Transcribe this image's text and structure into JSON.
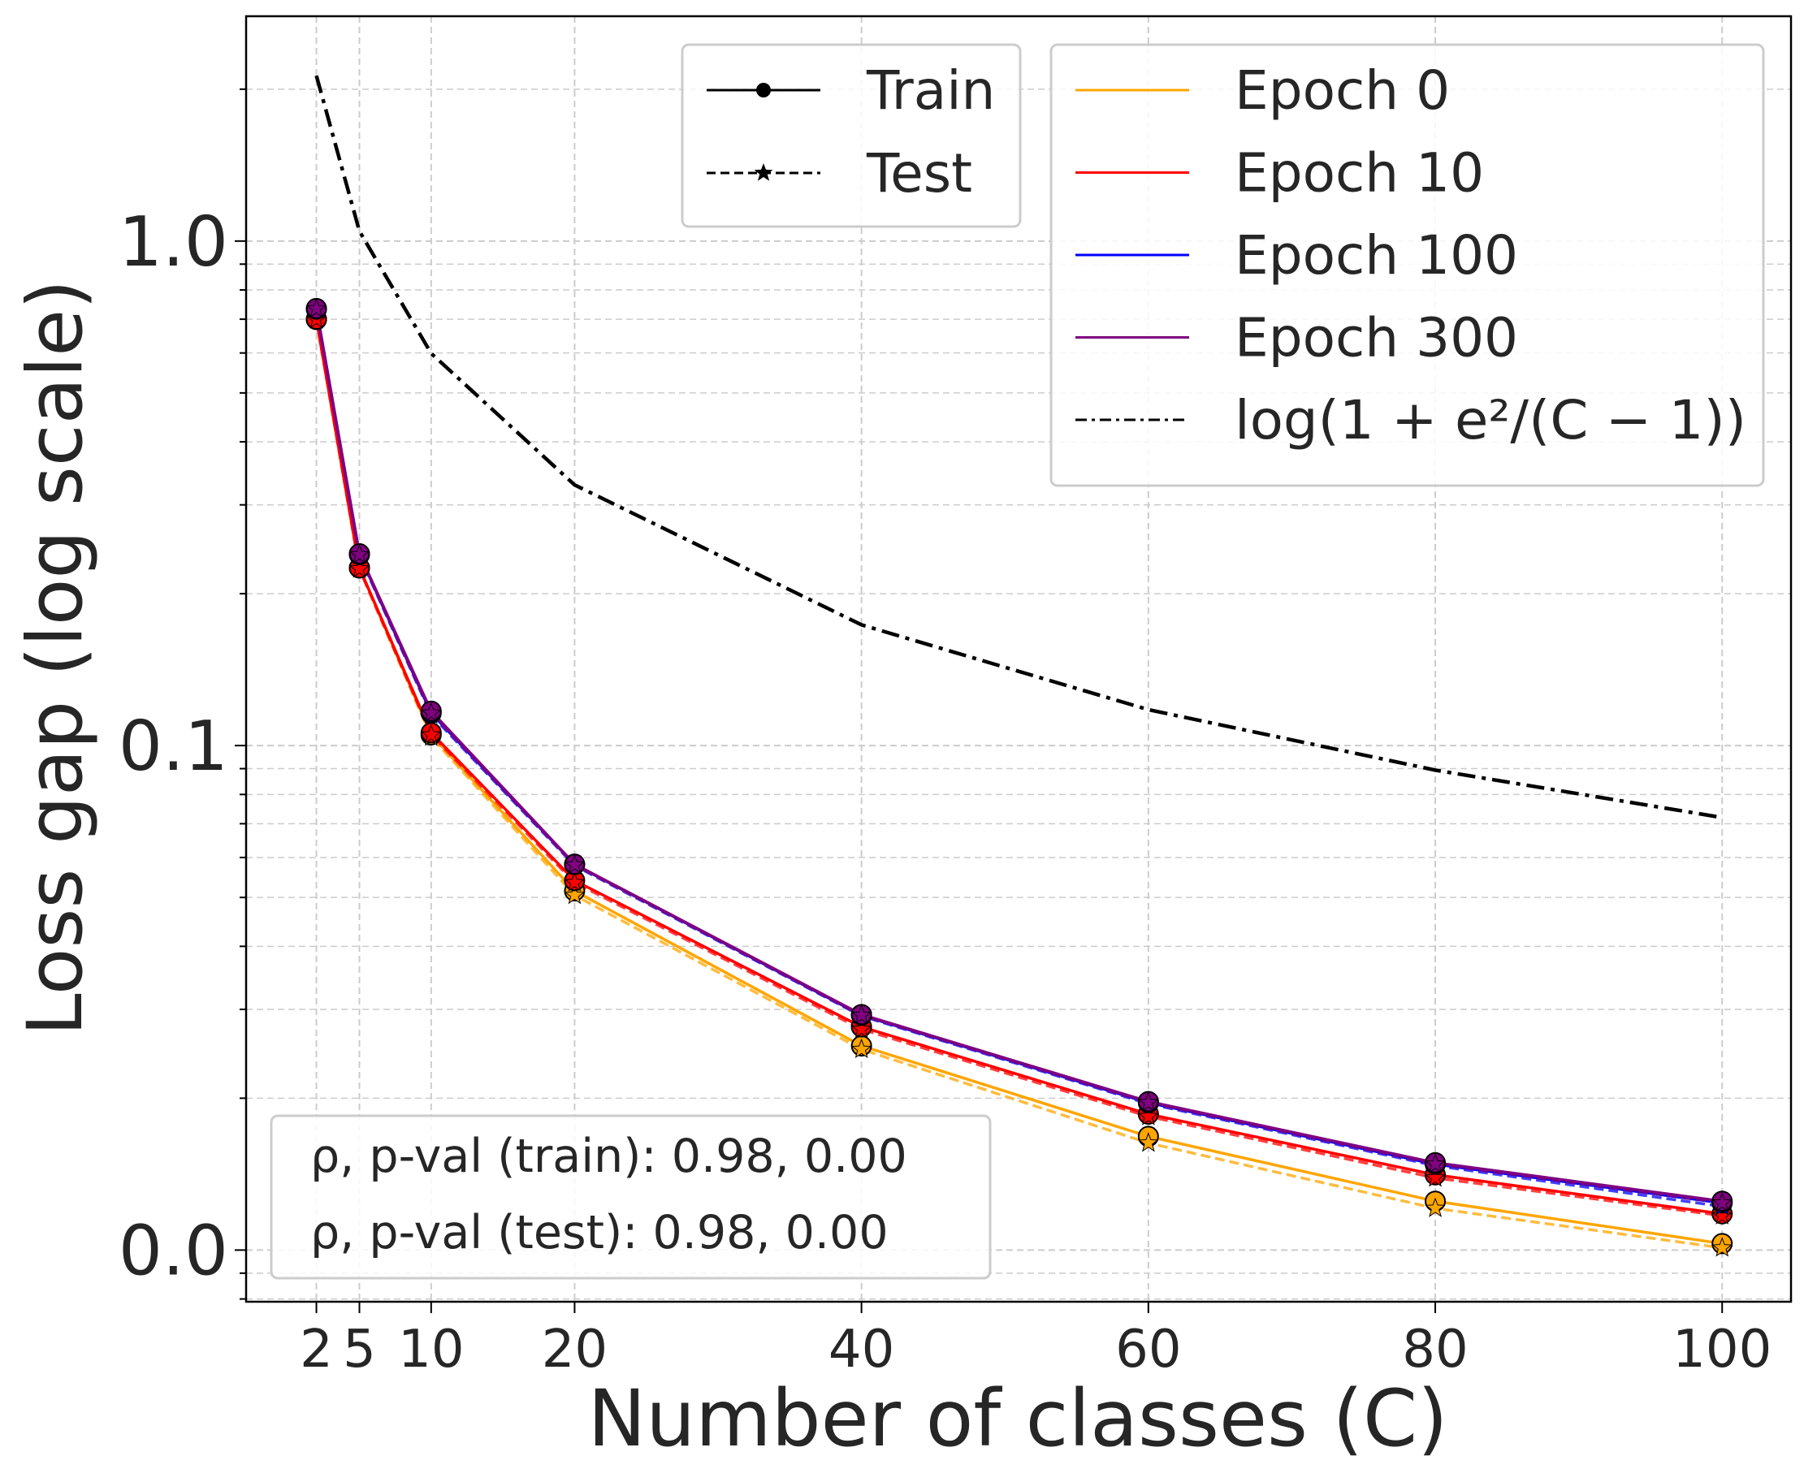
{
  "chart_data": {
    "type": "line",
    "xlabel": "Number of classes  (C)",
    "ylabel": "Loss gap (log  scale)",
    "yscale": "log",
    "xlim": [
      -2.9,
      104.8
    ],
    "ylim": [
      0.0079,
      2.79
    ],
    "grid": true,
    "x": [
      2,
      5,
      10,
      20,
      40,
      60,
      80,
      100
    ],
    "x_tick_labels": [
      "2",
      "5",
      "10",
      "20",
      "40",
      "60",
      "80",
      "100"
    ],
    "y_ticks": [
      1.0,
      0.1,
      0.01
    ],
    "y_tick_labels": [
      "1.0",
      "0.1",
      "0.0"
    ],
    "series": [
      {
        "name": "Epoch 0",
        "color": "#ffa500",
        "train": [
          0.699,
          0.225,
          0.105,
          0.0515,
          0.0254,
          0.0168,
          0.0125,
          0.0103
        ],
        "test": [
          0.698,
          0.224,
          0.104,
          0.0505,
          0.025,
          0.0163,
          0.0121,
          0.0101
        ]
      },
      {
        "name": "Epoch 10",
        "color": "#ff0000",
        "train": [
          0.7,
          0.225,
          0.106,
          0.054,
          0.0277,
          0.0186,
          0.0141,
          0.0118
        ],
        "test": [
          0.699,
          0.224,
          0.105,
          0.0535,
          0.0274,
          0.0184,
          0.0139,
          0.0117
        ]
      },
      {
        "name": "Epoch 100",
        "color": "#0000ff",
        "train": [
          0.733,
          0.239,
          0.116,
          0.0581,
          0.0292,
          0.0196,
          0.0148,
          0.0124
        ],
        "test": [
          0.732,
          0.238,
          0.115,
          0.0578,
          0.0291,
          0.0195,
          0.0147,
          0.0122
        ]
      },
      {
        "name": "Epoch 300",
        "color": "#800080",
        "train": [
          0.735,
          0.24,
          0.117,
          0.0582,
          0.0293,
          0.0197,
          0.0149,
          0.0125
        ],
        "test": [
          0.734,
          0.239,
          0.116,
          0.058,
          0.0292,
          0.0196,
          0.0148,
          0.0124
        ]
      }
    ],
    "bound": {
      "name": "log(1 + e²/(C − 1))",
      "color": "#000000",
      "values": [
        2.127,
        1.046,
        0.599,
        0.3286,
        0.1735,
        0.1178,
        0.0894,
        0.072
      ]
    },
    "legend_style": {
      "placement": "top-right",
      "entries": [
        {
          "label": "Train",
          "style": "solid line with circle marker"
        },
        {
          "label": "Test",
          "style": "dashed line with star marker"
        }
      ]
    },
    "annotation": {
      "train": "ρ, p-val (train):  0.98, 0.00",
      "test": "ρ, p-val (test):  0.98, 0.00",
      "placement": "bottom-left"
    }
  }
}
